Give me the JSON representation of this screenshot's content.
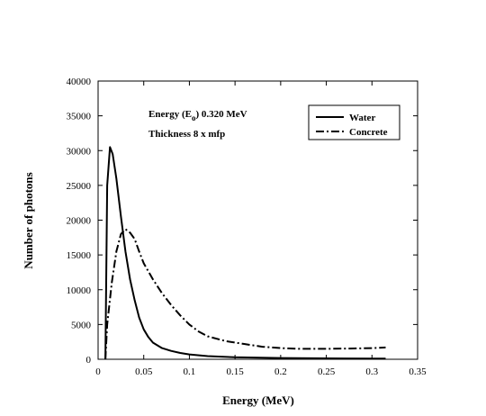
{
  "chart_data": {
    "type": "line",
    "title": "",
    "xlabel": "Energy (MeV)",
    "ylabel": "Number of photons",
    "xlim": [
      0,
      0.35
    ],
    "ylim": [
      0,
      40000
    ],
    "x_ticks": [
      0,
      0.05,
      0.1,
      0.15,
      0.2,
      0.25,
      0.3,
      0.35
    ],
    "x_tick_labels": [
      "0",
      "0.05",
      "0.1",
      "0.15",
      "0.2",
      "0.25",
      "0.3",
      "0.35"
    ],
    "y_ticks": [
      0,
      5000,
      10000,
      15000,
      20000,
      25000,
      30000,
      35000,
      40000
    ],
    "y_tick_labels": [
      "0",
      "5000",
      "10000",
      "15000",
      "20000",
      "25000",
      "30000",
      "35000",
      "40000"
    ],
    "grid": false,
    "legend_position": "top-right",
    "annotations": {
      "energy_prefix": "Energy (E",
      "energy_subscript": "o",
      "energy_suffix": ")  0.320 MeV",
      "thickness": "Thickness  8 x mfp"
    },
    "series": [
      {
        "name": "Water",
        "style": "solid",
        "x": [
          0.008,
          0.01,
          0.013,
          0.016,
          0.02,
          0.025,
          0.03,
          0.035,
          0.04,
          0.045,
          0.05,
          0.055,
          0.06,
          0.07,
          0.08,
          0.09,
          0.1,
          0.12,
          0.15,
          0.2,
          0.25,
          0.3,
          0.315
        ],
        "values": [
          0,
          25000,
          30500,
          29500,
          26000,
          20500,
          15500,
          11500,
          8500,
          6000,
          4300,
          3200,
          2400,
          1600,
          1200,
          900,
          700,
          450,
          280,
          180,
          130,
          100,
          90
        ]
      },
      {
        "name": "Concrete",
        "style": "dash-dot",
        "x": [
          0.008,
          0.01,
          0.015,
          0.02,
          0.025,
          0.03,
          0.035,
          0.04,
          0.045,
          0.05,
          0.06,
          0.07,
          0.08,
          0.09,
          0.1,
          0.11,
          0.12,
          0.14,
          0.16,
          0.18,
          0.2,
          0.22,
          0.25,
          0.28,
          0.3,
          0.315
        ],
        "values": [
          0,
          5000,
          11000,
          15500,
          18000,
          18700,
          18200,
          17300,
          15500,
          13800,
          11500,
          9500,
          7800,
          6300,
          5000,
          4000,
          3300,
          2600,
          2200,
          1800,
          1600,
          1500,
          1500,
          1550,
          1600,
          1700
        ]
      }
    ]
  }
}
